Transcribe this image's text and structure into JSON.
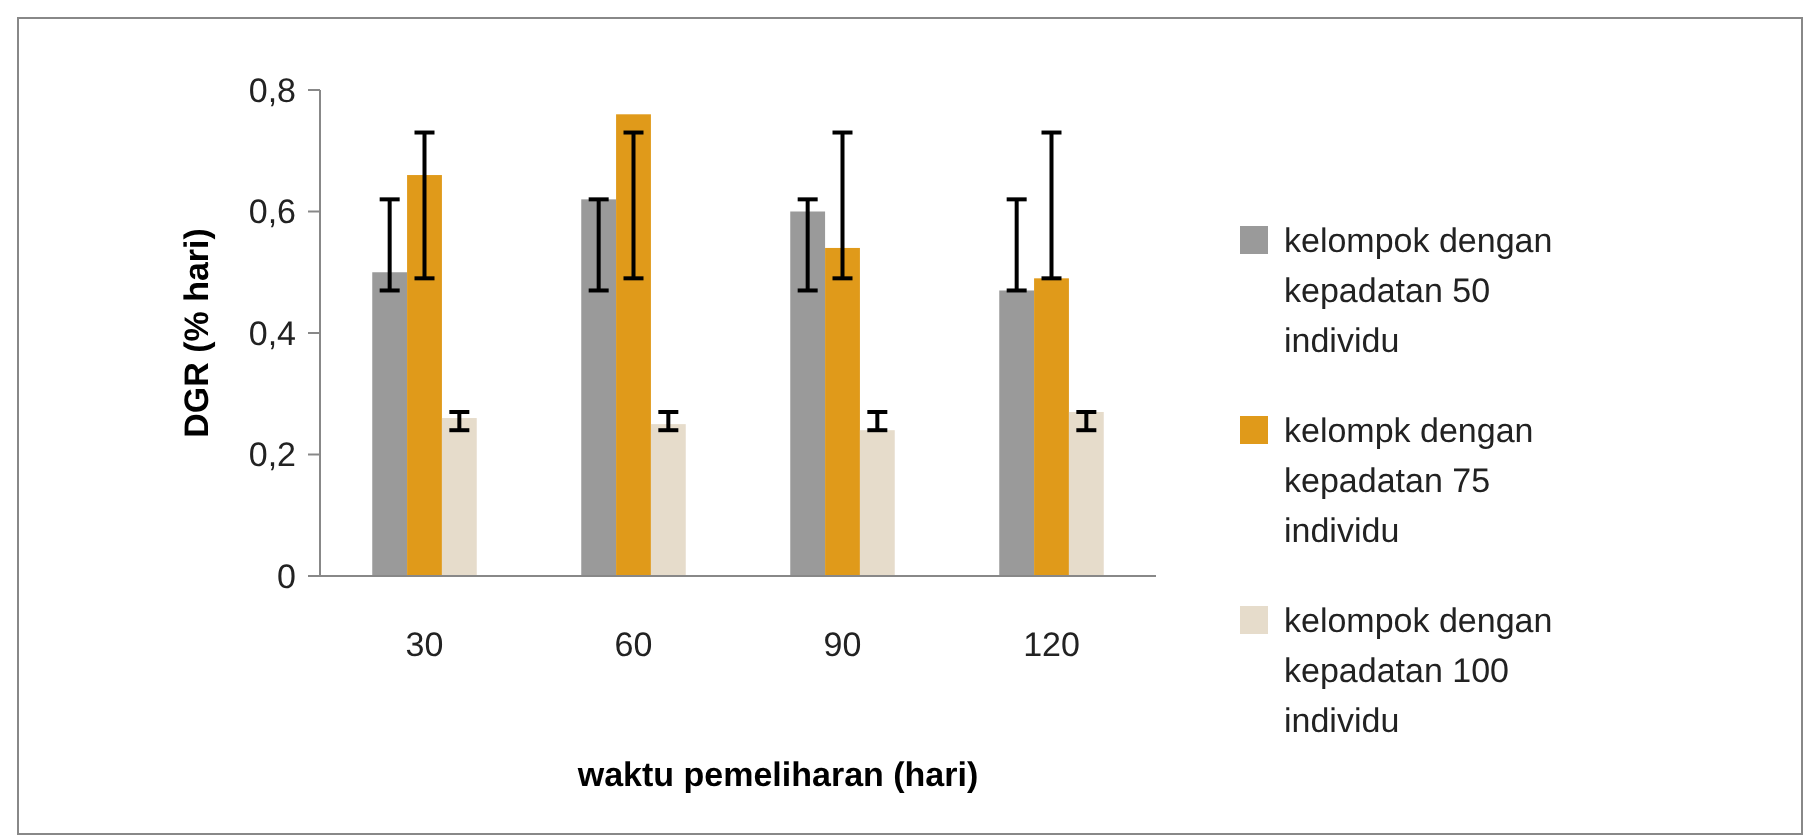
{
  "chart_data": {
    "type": "bar",
    "xlabel": "waktu pemeliharan (hari)",
    "ylabel": "DGR (% hari)",
    "categories": [
      "30",
      "60",
      "90",
      "120"
    ],
    "series": [
      {
        "name": "kelompok dengan kepadatan 50 individu",
        "color": "#9a9a9a",
        "values": [
          0.5,
          0.62,
          0.6,
          0.47
        ],
        "errors": [
          [
            0.47,
            0.62
          ],
          [
            0.47,
            0.62
          ],
          [
            0.47,
            0.62
          ],
          [
            0.47,
            0.62
          ]
        ]
      },
      {
        "name": "kelompk dengan kepadatan 75 individu",
        "color": "#e09a1a",
        "values": [
          0.66,
          0.76,
          0.54,
          0.49
        ],
        "errors": [
          [
            0.49,
            0.73
          ],
          [
            0.49,
            0.73
          ],
          [
            0.49,
            0.73
          ],
          [
            0.49,
            0.73
          ]
        ]
      },
      {
        "name": "kelompok dengan kepadatan 100 individu",
        "color": "#e6dccb",
        "values": [
          0.26,
          0.25,
          0.24,
          0.27
        ],
        "errors": [
          [
            0.24,
            0.27
          ],
          [
            0.24,
            0.27
          ],
          [
            0.24,
            0.27
          ],
          [
            0.24,
            0.27
          ]
        ]
      }
    ],
    "ylim": [
      0,
      0.8
    ],
    "yticks": [
      {
        "value": 0,
        "label": "0"
      },
      {
        "value": 0.2,
        "label": "0,2"
      },
      {
        "value": 0.4,
        "label": "0,4"
      },
      {
        "value": 0.6,
        "label": "0,6"
      },
      {
        "value": 0.8,
        "label": "0,8"
      }
    ],
    "grid": false,
    "legend": "right"
  }
}
